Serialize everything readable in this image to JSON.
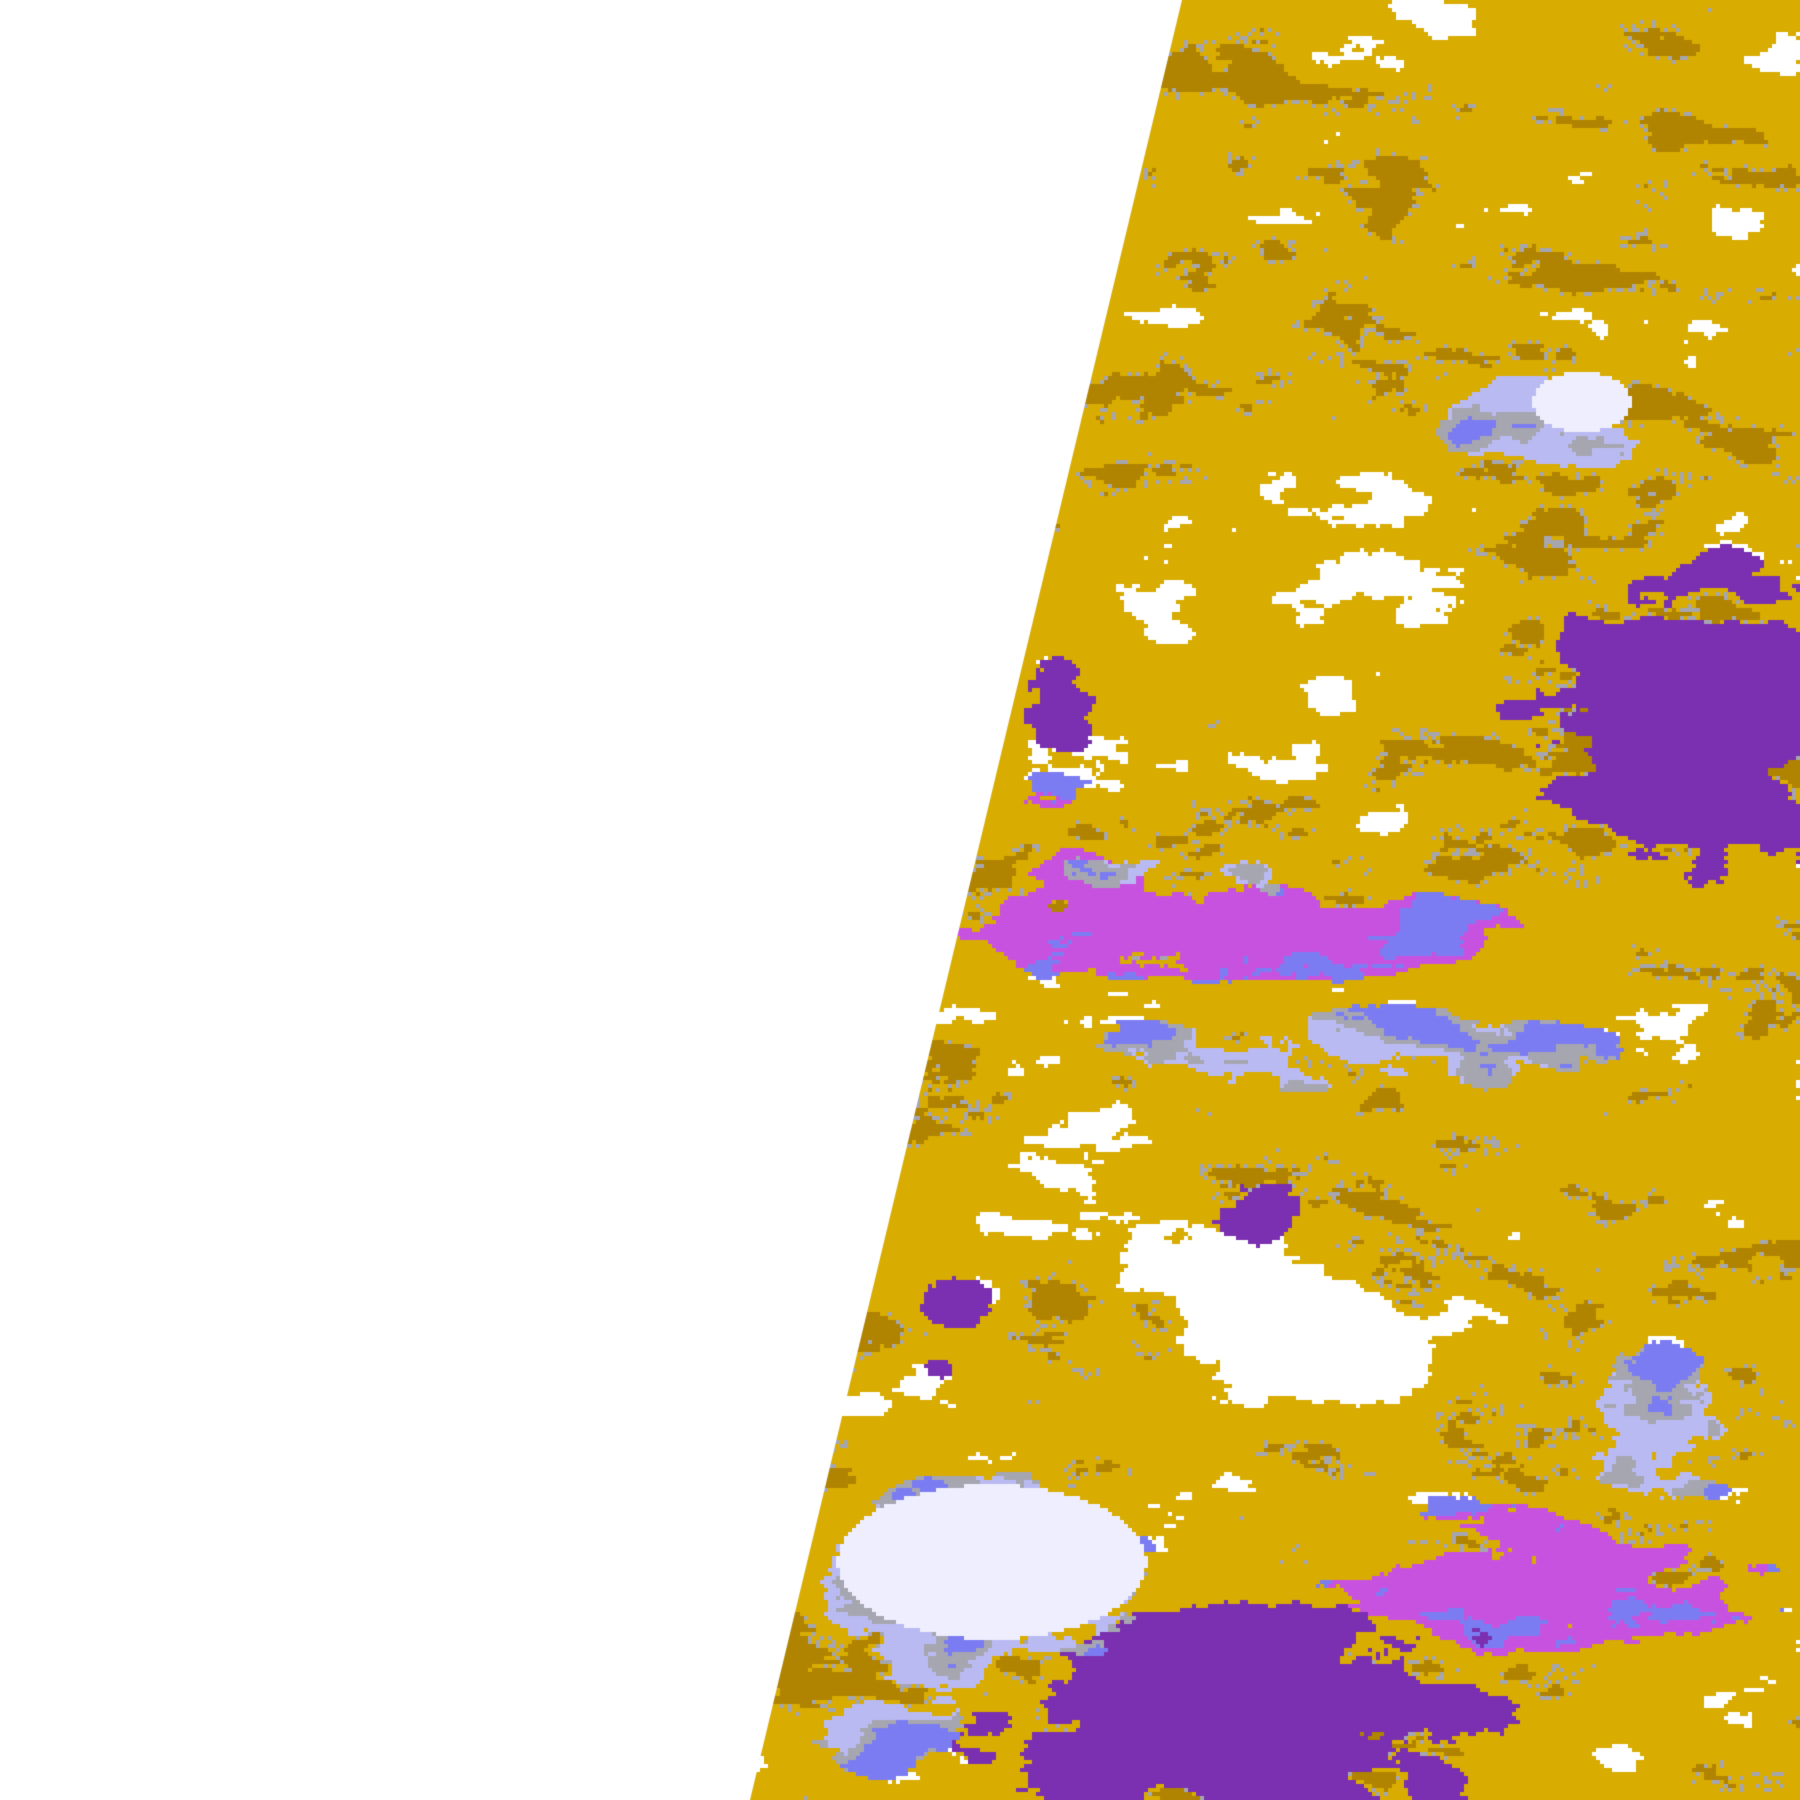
{
  "map": {
    "type": "satellite swath classification image",
    "palette": {
      "background": "#ffffff",
      "gold": "#d8ac00",
      "dark_gold": "#b08300",
      "purple": "#7a30b0",
      "magenta": "#c852e0",
      "periwinkle": "#7c7cf2",
      "lilac": "#babaf2",
      "pale_lavender": "#eeeeff",
      "gray": "#a6a6b0",
      "clear": "#ffffff"
    }
  }
}
